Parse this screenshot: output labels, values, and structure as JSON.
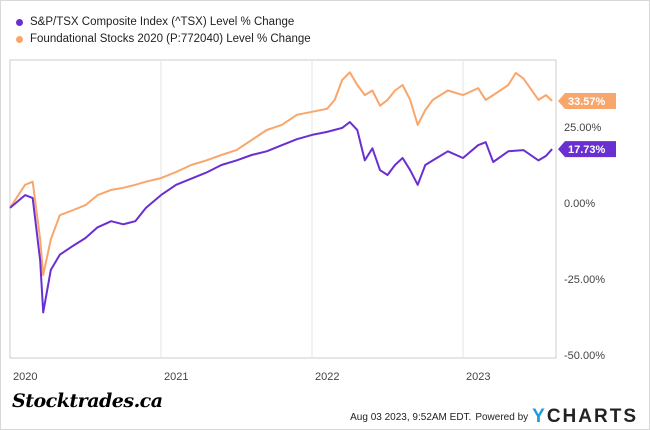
{
  "chart_data": {
    "type": "line",
    "title": "",
    "xlabel": "",
    "ylabel": "",
    "ylim": [
      -50,
      50
    ],
    "xlim": [
      2020.0,
      2023.62
    ],
    "yticks": [
      25,
      0,
      -25,
      -50
    ],
    "ytick_labels": [
      "25.00%",
      "0.00%",
      "-25.00%",
      "-50.00%"
    ],
    "xticks": [
      2020,
      2021,
      2022,
      2023
    ],
    "xtick_labels": [
      "2020",
      "2021",
      "2022",
      "2023"
    ],
    "grid": true,
    "legend_position": "top-left",
    "series": [
      {
        "name": "S&P/TSX Composite Index (^TSX) Level % Change",
        "color": "#6a2fd0",
        "end_label": "17.73%",
        "x": [
          2020.0,
          2020.1,
          2020.15,
          2020.2,
          2020.22,
          2020.27,
          2020.33,
          2020.42,
          2020.5,
          2020.58,
          2020.67,
          2020.75,
          2020.83,
          2020.9,
          2021.0,
          2021.1,
          2021.2,
          2021.3,
          2021.4,
          2021.5,
          2021.6,
          2021.7,
          2021.8,
          2021.9,
          2022.0,
          2022.1,
          2022.2,
          2022.25,
          2022.3,
          2022.35,
          2022.4,
          2022.45,
          2022.5,
          2022.55,
          2022.6,
          2022.65,
          2022.7,
          2022.75,
          2022.8,
          2022.9,
          2023.0,
          2023.1,
          2023.15,
          2023.2,
          2023.3,
          2023.4,
          2023.5,
          2023.55,
          2023.59
        ],
        "y": [
          -1.6,
          2.6,
          1.6,
          -19,
          -36,
          -22,
          -17,
          -14,
          -11.5,
          -8,
          -6,
          -7,
          -6,
          -1.6,
          2.6,
          6,
          8,
          10,
          12.5,
          14,
          15.8,
          17,
          19,
          21,
          22.4,
          23.4,
          24.7,
          26.6,
          24,
          14,
          18,
          10.8,
          9.2,
          12.5,
          14.8,
          10.8,
          6,
          12.5,
          14,
          17,
          14.8,
          19,
          20,
          13.5,
          17,
          17.4,
          14,
          15.5,
          17.73
        ]
      },
      {
        "name": "Foundational Stocks 2020 (P:772040) Level % Change",
        "color": "#f9a66c",
        "end_label": "33.57%",
        "x": [
          2020.0,
          2020.1,
          2020.15,
          2020.2,
          2020.22,
          2020.27,
          2020.33,
          2020.42,
          2020.5,
          2020.58,
          2020.67,
          2020.75,
          2020.83,
          2020.9,
          2021.0,
          2021.1,
          2021.2,
          2021.3,
          2021.4,
          2021.5,
          2021.6,
          2021.7,
          2021.8,
          2021.9,
          2022.0,
          2022.1,
          2022.15,
          2022.2,
          2022.25,
          2022.3,
          2022.35,
          2022.4,
          2022.45,
          2022.5,
          2022.55,
          2022.6,
          2022.65,
          2022.7,
          2022.75,
          2022.8,
          2022.9,
          2023.0,
          2023.1,
          2023.15,
          2023.2,
          2023.3,
          2023.35,
          2023.4,
          2023.5,
          2023.55,
          2023.59
        ],
        "y": [
          -1.6,
          6,
          7,
          -12,
          -23.7,
          -12,
          -4,
          -2.3,
          -0.7,
          2.6,
          4.3,
          5,
          6,
          7,
          8.2,
          10.2,
          12.5,
          14,
          15.8,
          17.4,
          20.7,
          24,
          25.7,
          29,
          30,
          31,
          33.9,
          40.5,
          43,
          38.8,
          35.5,
          37,
          32,
          33.9,
          37,
          38.8,
          33.9,
          25.7,
          30.6,
          33.9,
          37,
          35.5,
          37.8,
          33.9,
          35.5,
          38.8,
          42.8,
          41,
          33.9,
          35.5,
          33.57
        ]
      }
    ]
  },
  "legend": {
    "items": [
      {
        "label": "S&P/TSX Composite Index (^TSX) Level % Change",
        "color": "#6a2fd0"
      },
      {
        "label": "Foundational Stocks 2020 (P:772040) Level % Change",
        "color": "#f9a66c"
      }
    ]
  },
  "footer": {
    "logo": "Stocktrades.ca",
    "timestamp": "Aug 03 2023, 9:52AM EDT.",
    "powered_by": "Powered by",
    "brand_y": "Y",
    "brand_rest": "CHARTS"
  }
}
